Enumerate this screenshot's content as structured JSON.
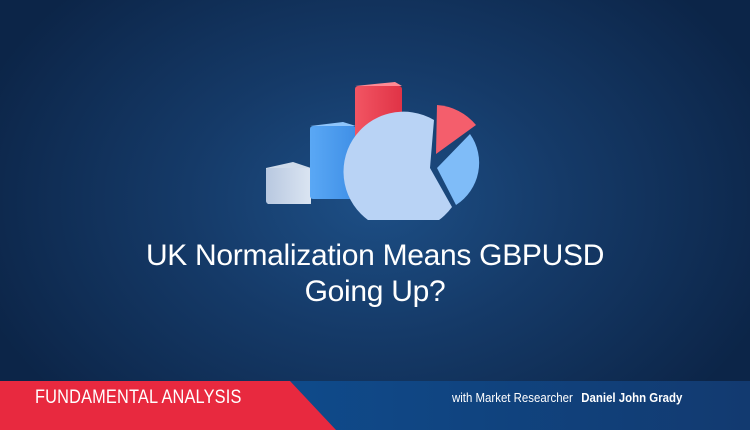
{
  "headline": {
    "line1": "UK Normalization Means GBPUSD",
    "line2": "Going Up?"
  },
  "footer": {
    "category": "FUNDAMENTAL ANALYSIS",
    "byline_prefix": "with Market Researcher",
    "author": "Daniel John Grady"
  },
  "illustration": {
    "icon": "bar-and-pie-chart-icon"
  },
  "colors": {
    "background": "#153a68",
    "accent_red": "#e8293f",
    "footer_blue": "#0f4a8a"
  }
}
